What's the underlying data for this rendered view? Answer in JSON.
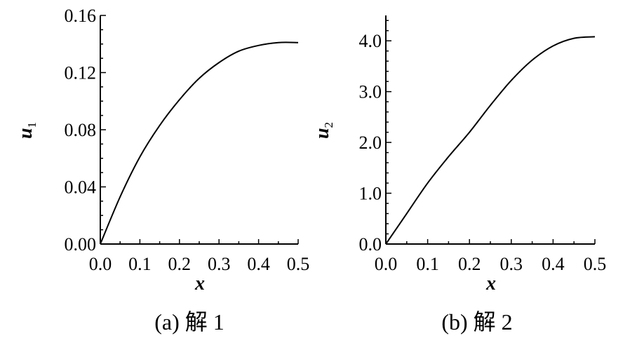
{
  "chart_data": [
    {
      "type": "line",
      "caption": "(a) 解 1",
      "xlabel": "x",
      "ylabel_base": "u",
      "ylabel_sub": "1",
      "xlim": [
        0,
        0.5
      ],
      "ylim": [
        0,
        0.16
      ],
      "xticks": [
        "0.0",
        "0.1",
        "0.2",
        "0.3",
        "0.4",
        "0.5"
      ],
      "yticks": [
        "0.00",
        "0.04",
        "0.08",
        "0.12",
        "0.16"
      ],
      "series": [
        {
          "x": [
            0,
            0.05,
            0.1,
            0.15,
            0.2,
            0.25,
            0.3,
            0.35,
            0.4,
            0.45,
            0.5
          ],
          "y": [
            0,
            0.033,
            0.061,
            0.083,
            0.101,
            0.116,
            0.127,
            0.135,
            0.139,
            0.141,
            0.141
          ]
        }
      ]
    },
    {
      "type": "line",
      "caption": "(b) 解 2",
      "xlabel": "x",
      "ylabel_base": "u",
      "ylabel_sub": "2",
      "xlim": [
        0,
        0.5
      ],
      "ylim": [
        0,
        4.5
      ],
      "xticks": [
        "0.0",
        "0.1",
        "0.2",
        "0.3",
        "0.4",
        "0.5"
      ],
      "yticks": [
        "0.0",
        "1.0",
        "2.0",
        "3.0",
        "4.0"
      ],
      "series": [
        {
          "x": [
            0,
            0.05,
            0.1,
            0.15,
            0.2,
            0.25,
            0.3,
            0.35,
            0.4,
            0.45,
            0.5
          ],
          "y": [
            0,
            0.6,
            1.2,
            1.72,
            2.2,
            2.73,
            3.22,
            3.62,
            3.9,
            4.05,
            4.08
          ]
        }
      ]
    }
  ]
}
